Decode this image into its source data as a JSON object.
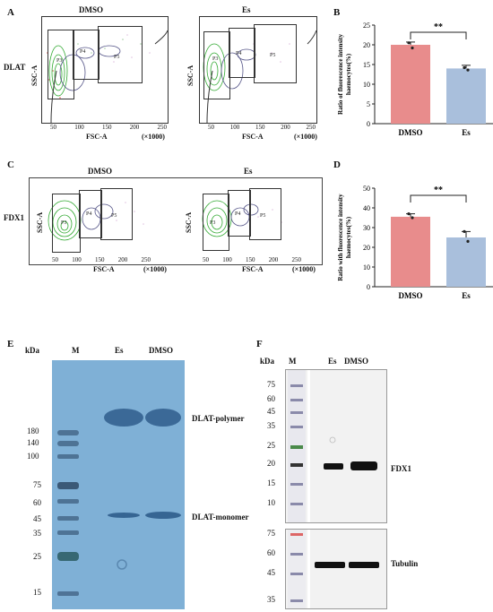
{
  "panels": {
    "A": {
      "letter": "A",
      "row_label": "DLAT",
      "plots": [
        {
          "title": "DMSO",
          "ylabel": "SSC-A",
          "xlabel": "FSC-A",
          "xunit": "(×1000)",
          "xticks": [
            "50",
            "100",
            "150",
            "200",
            "250"
          ],
          "gates": [
            "P3",
            "P4",
            "P5"
          ]
        },
        {
          "title": "Es",
          "ylabel": "SSC-A",
          "xlabel": "FSC-A",
          "xunit": "(×1000)",
          "xticks": [
            "50",
            "100",
            "150",
            "200",
            "250"
          ],
          "gates": [
            "P3",
            "P4",
            "P5"
          ]
        }
      ]
    },
    "C": {
      "letter": "C",
      "row_label": "FDX1",
      "plots": [
        {
          "title": "DMSO",
          "ylabel": "SSC-A",
          "xlabel": "FSC-A",
          "xunit": "(×1000)",
          "xticks": [
            "50",
            "100",
            "150",
            "200",
            "250"
          ],
          "gates": [
            "P3",
            "P4",
            "P5"
          ]
        },
        {
          "title": "Es",
          "ylabel": "SSC-A",
          "xlabel": "FSC-A",
          "xunit": "(×1000)",
          "xticks": [
            "50",
            "100",
            "150",
            "200",
            "250"
          ],
          "gates": [
            "P3",
            "P4",
            "P5"
          ]
        }
      ]
    },
    "E": {
      "letter": "E",
      "kda": "kDa",
      "lanes": [
        "M",
        "Es",
        "DMSO"
      ],
      "markers": [
        "180",
        "140",
        "100",
        "75",
        "60",
        "45",
        "35",
        "25",
        "15"
      ],
      "band_labels": [
        "DLAT-polymer",
        "DLAT-monomer"
      ]
    },
    "F": {
      "letter": "F",
      "kda": "kDa",
      "lanes": [
        "M",
        "Es",
        "DMSO"
      ],
      "markers_top": [
        "75",
        "60",
        "45",
        "35",
        "25",
        "20",
        "15",
        "10"
      ],
      "markers_bottom": [
        "75",
        "60",
        "45",
        "35"
      ],
      "band_labels": [
        "FDX1",
        "Tubulin"
      ]
    }
  },
  "chart_data": [
    {
      "type": "bar",
      "panel": "B",
      "categories": [
        "DMSO",
        "Es"
      ],
      "values": [
        20,
        14
      ],
      "errors": [
        0.7,
        0.8
      ],
      "points": [
        [
          20.5,
          19.2
        ],
        [
          14.2,
          13.6
        ]
      ],
      "ylabel": "Ratio of fluorescence intensity haemocytes(%)",
      "ylim": [
        0,
        25
      ],
      "yticks": [
        "0",
        "5",
        "10",
        "15",
        "20",
        "25"
      ],
      "significance": "**",
      "colors": [
        "#e88c8c",
        "#a9bfdc"
      ]
    },
    {
      "type": "bar",
      "panel": "D",
      "categories": [
        "DMSO",
        "Es"
      ],
      "values": [
        35.5,
        25
      ],
      "errors": [
        1.5,
        3
      ],
      "points": [
        [
          37,
          35
        ],
        [
          28,
          23
        ]
      ],
      "ylabel": "Ratio with fluorescence intensity haemocytes(%)",
      "ylim": [
        0,
        50
      ],
      "yticks": [
        "0",
        "10",
        "20",
        "30",
        "40",
        "50"
      ],
      "significance": "**",
      "colors": [
        "#e88c8c",
        "#a9bfdc"
      ]
    }
  ]
}
